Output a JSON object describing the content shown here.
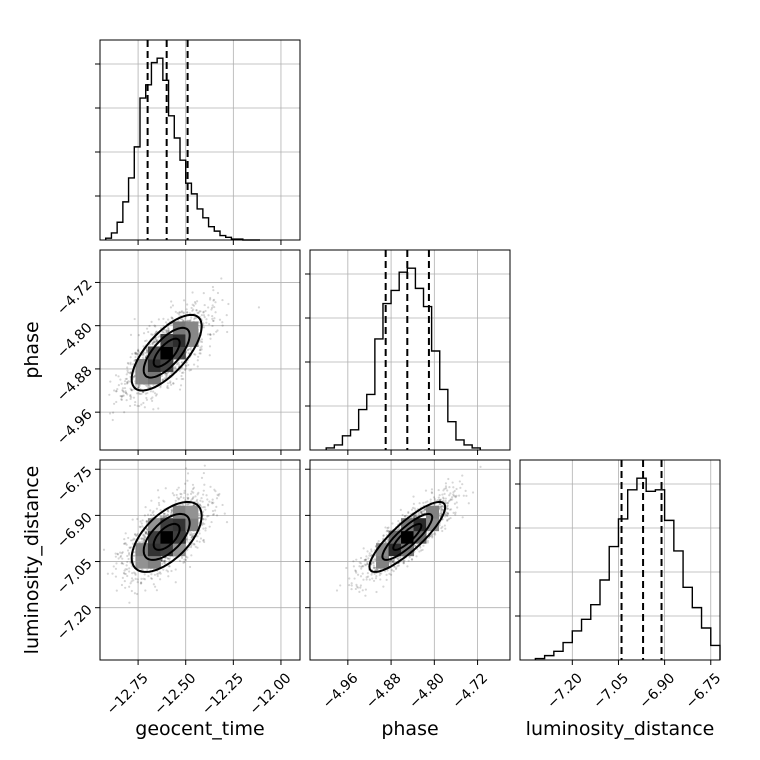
{
  "chart_data": {
    "type": "corner",
    "parameters": [
      "geocent_time",
      "phase",
      "luminosity_distance"
    ],
    "xlabels": [
      "geocent_time",
      "phase",
      "luminosity_distance"
    ],
    "ylabels": [
      "",
      "phase",
      "luminosity_distance"
    ],
    "ranges": {
      "geocent_time": [
        -12.95,
        -11.9
      ],
      "phase": [
        -5.03,
        -4.66
      ],
      "luminosity_distance": [
        -7.37,
        -6.72
      ]
    },
    "ticks": {
      "geocent_time": [
        -12.75,
        -12.5,
        -12.25,
        -12.0
      ],
      "phase": [
        -4.96,
        -4.88,
        -4.8,
        -4.72
      ],
      "luminosity_distance": [
        -7.2,
        -7.05,
        -6.9,
        -6.75
      ]
    },
    "tick_labels": {
      "geocent_time": [
        "−12.75",
        "−12.50",
        "−12.25",
        "−12.00"
      ],
      "phase": [
        "−4.96",
        "−4.88",
        "−4.80",
        "−4.72"
      ],
      "luminosity_distance": [
        "−7.20",
        "−7.05",
        "−6.90",
        "−6.75"
      ]
    },
    "quantiles": {
      "geocent_time": [
        -12.7,
        -12.6,
        -12.49
      ],
      "phase": [
        -4.89,
        -4.85,
        -4.81
      ],
      "luminosity_distance": [
        -7.04,
        -6.97,
        -6.91
      ]
    },
    "histograms": {
      "geocent_time": {
        "edges": [
          -12.92,
          -12.89,
          -12.86,
          -12.83,
          -12.8,
          -12.77,
          -12.74,
          -12.71,
          -12.68,
          -12.65,
          -12.62,
          -12.59,
          -12.56,
          -12.53,
          -12.5,
          -12.47,
          -12.44,
          -12.41,
          -12.38,
          -12.35,
          -12.32,
          -12.29,
          -12.26,
          -12.23,
          -12.2,
          -12.17,
          -12.14,
          -12.11
        ],
        "counts": [
          2,
          8,
          20,
          43,
          70,
          105,
          160,
          175,
          200,
          205,
          180,
          140,
          115,
          90,
          64,
          52,
          35,
          25,
          15,
          10,
          5,
          3,
          1,
          1,
          0,
          0,
          0
        ]
      },
      "phase": {
        "edges": [
          -5.0,
          -4.985,
          -4.97,
          -4.955,
          -4.94,
          -4.925,
          -4.91,
          -4.895,
          -4.88,
          -4.865,
          -4.85,
          -4.835,
          -4.82,
          -4.805,
          -4.79,
          -4.775,
          -4.76,
          -4.745,
          -4.73,
          -4.715
        ],
        "counts": [
          2,
          5,
          14,
          20,
          40,
          55,
          110,
          145,
          158,
          176,
          180,
          160,
          142,
          98,
          60,
          28,
          10,
          5,
          2
        ]
      },
      "luminosity_distance": {
        "edges": [
          -7.32,
          -7.29,
          -7.26,
          -7.23,
          -7.2,
          -7.17,
          -7.14,
          -7.11,
          -7.08,
          -7.05,
          -7.02,
          -6.99,
          -6.96,
          -6.93,
          -6.9,
          -6.87,
          -6.84,
          -6.81,
          -6.78,
          -6.75,
          -6.72
        ],
        "counts": [
          1,
          3,
          6,
          12,
          20,
          28,
          38,
          55,
          78,
          97,
          117,
          125,
          116,
          117,
          96,
          75,
          50,
          36,
          22,
          10
        ]
      }
    },
    "correlations": {
      "phase_vs_geocent_time": 0.7,
      "luminosity_distance_vs_geocent_time": 0.6,
      "luminosity_distance_vs_phase": 0.85
    },
    "grid": true
  }
}
